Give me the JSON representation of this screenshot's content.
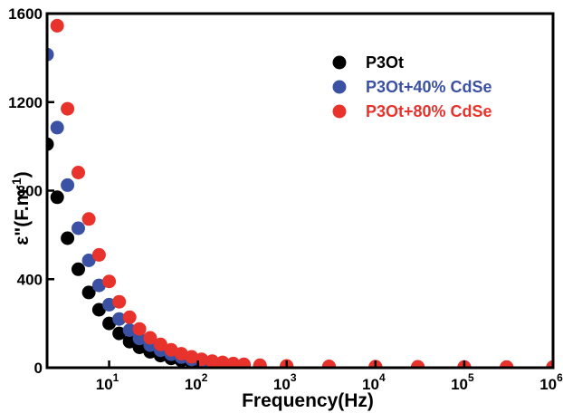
{
  "chart_data": {
    "type": "scatter",
    "x_scale": "log",
    "xlim": [
      2,
      1000000
    ],
    "ylim": [
      0,
      1600
    ],
    "xlabel": "Frequency(Hz)",
    "ylabel": "ε\"(F.m",
    "ylabel_superscript": "-1",
    "ylabel_close": ")",
    "x_ticks": [
      {
        "base": "10",
        "exp": "1",
        "value": 10
      },
      {
        "base": "10",
        "exp": "2",
        "value": 100
      },
      {
        "base": "10",
        "exp": "3",
        "value": 1000
      },
      {
        "base": "10",
        "exp": "4",
        "value": 10000
      },
      {
        "base": "10",
        "exp": "5",
        "value": 100000
      },
      {
        "base": "10",
        "exp": "6",
        "value": 1000000
      }
    ],
    "y_ticks": [
      {
        "label": "0",
        "value": 0
      },
      {
        "label": "400",
        "value": 400
      },
      {
        "label": "800",
        "value": 800
      },
      {
        "label": "1200",
        "value": 1200
      },
      {
        "label": "1600",
        "value": 1600
      }
    ],
    "grid": false,
    "legend_position": "top-right",
    "series": [
      {
        "name": "P3Ot",
        "color": "#000000",
        "points": [
          [
            2,
            1010
          ],
          [
            2.6,
            770
          ],
          [
            3.4,
            585
          ],
          [
            4.5,
            445
          ],
          [
            5.9,
            340
          ],
          [
            7.7,
            262
          ],
          [
            10,
            200
          ],
          [
            13,
            155
          ],
          [
            17,
            118
          ],
          [
            22,
            92
          ],
          [
            29,
            72
          ],
          [
            38,
            55
          ],
          [
            50,
            42
          ],
          [
            65,
            33
          ],
          [
            85,
            25
          ],
          [
            110,
            20
          ],
          [
            145,
            15
          ],
          [
            190,
            12
          ],
          [
            250,
            10
          ],
          [
            330,
            8
          ],
          [
            500,
            6
          ],
          [
            1000,
            5
          ],
          [
            3000,
            4
          ],
          [
            10000,
            3
          ],
          [
            30000,
            3
          ],
          [
            100000,
            2
          ],
          [
            300000,
            2
          ],
          [
            1000000,
            2
          ]
        ]
      },
      {
        "name": "P3Ot+40% CdSe",
        "color": "#3b51a3",
        "points": [
          [
            2,
            1415
          ],
          [
            2.6,
            1085
          ],
          [
            3.4,
            825
          ],
          [
            4.5,
            630
          ],
          [
            5.9,
            485
          ],
          [
            7.7,
            372
          ],
          [
            10,
            285
          ],
          [
            13,
            220
          ],
          [
            17,
            170
          ],
          [
            22,
            132
          ],
          [
            29,
            102
          ],
          [
            38,
            79
          ],
          [
            50,
            61
          ],
          [
            65,
            48
          ],
          [
            85,
            37
          ],
          [
            110,
            29
          ],
          [
            145,
            23
          ],
          [
            190,
            18
          ],
          [
            250,
            14
          ],
          [
            330,
            11
          ],
          [
            500,
            8
          ],
          [
            1000,
            6
          ],
          [
            3000,
            5
          ],
          [
            10000,
            4
          ],
          [
            30000,
            3
          ],
          [
            100000,
            3
          ],
          [
            300000,
            2
          ],
          [
            1000000,
            2
          ]
        ]
      },
      {
        "name": "P3Ot+80% CdSe",
        "color": "#e8332d",
        "points": [
          [
            2.6,
            1545
          ],
          [
            3.4,
            1170
          ],
          [
            4.5,
            882
          ],
          [
            5.9,
            672
          ],
          [
            7.7,
            510
          ],
          [
            10,
            390
          ],
          [
            13,
            298
          ],
          [
            17,
            228
          ],
          [
            22,
            175
          ],
          [
            29,
            135
          ],
          [
            38,
            105
          ],
          [
            50,
            81
          ],
          [
            65,
            63
          ],
          [
            85,
            49
          ],
          [
            110,
            38
          ],
          [
            145,
            30
          ],
          [
            190,
            24
          ],
          [
            250,
            19
          ],
          [
            330,
            15
          ],
          [
            500,
            11
          ],
          [
            1000,
            8
          ],
          [
            3000,
            6
          ],
          [
            10000,
            5
          ],
          [
            30000,
            4
          ],
          [
            100000,
            3
          ],
          [
            300000,
            3
          ],
          [
            1000000,
            3
          ]
        ]
      }
    ]
  }
}
